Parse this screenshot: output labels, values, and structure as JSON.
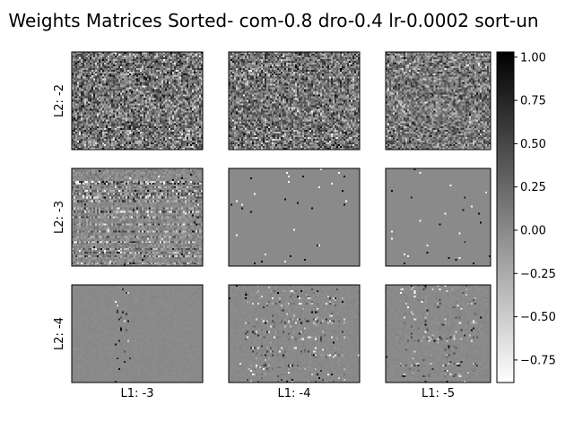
{
  "chart_data": {
    "type": "heatmap",
    "title": "Weights Matrices Sorted- com-0.8 dro-0.4 lr-0.0002 sort-un",
    "row_labels": [
      "L2: -2",
      "L2: -3",
      "L2: -4"
    ],
    "col_labels": [
      "L1: -3",
      "L1: -4",
      "L1: -5"
    ],
    "colormap": "gray_r",
    "grid": false,
    "colorbar": {
      "placement": "right",
      "vmin": -0.88,
      "vmax": 1.03,
      "ticks": [
        -0.75,
        -0.5,
        -0.25,
        0.0,
        0.25,
        0.5,
        0.75,
        1.0
      ],
      "tick_labels": [
        "−0.75",
        "−0.50",
        "−0.25",
        "0.00",
        "0.25",
        "0.50",
        "0.75",
        "1.00"
      ]
    },
    "panels": [
      {
        "row": 0,
        "col": 0,
        "pattern": "dense_noise",
        "mean": 0.15,
        "spread": 0.35
      },
      {
        "row": 0,
        "col": 1,
        "pattern": "dense_noise",
        "mean": 0.15,
        "spread": 0.33
      },
      {
        "row": 0,
        "col": 2,
        "pattern": "dense_noise",
        "mean": 0.12,
        "spread": 0.3
      },
      {
        "row": 1,
        "col": 0,
        "pattern": "structured_noise",
        "mean": 0.0,
        "spread": 0.22
      },
      {
        "row": 1,
        "col": 1,
        "pattern": "sparse",
        "mean": 0.0,
        "spread": 0.9
      },
      {
        "row": 1,
        "col": 2,
        "pattern": "sparse",
        "mean": 0.0,
        "spread": 0.9
      },
      {
        "row": 2,
        "col": 0,
        "pattern": "center_band",
        "mean": 0.0,
        "spread": 0.6
      },
      {
        "row": 2,
        "col": 1,
        "pattern": "wide_band",
        "mean": 0.0,
        "spread": 0.25
      },
      {
        "row": 2,
        "col": 2,
        "pattern": "wide_band",
        "mean": 0.0,
        "spread": 0.25
      }
    ]
  }
}
